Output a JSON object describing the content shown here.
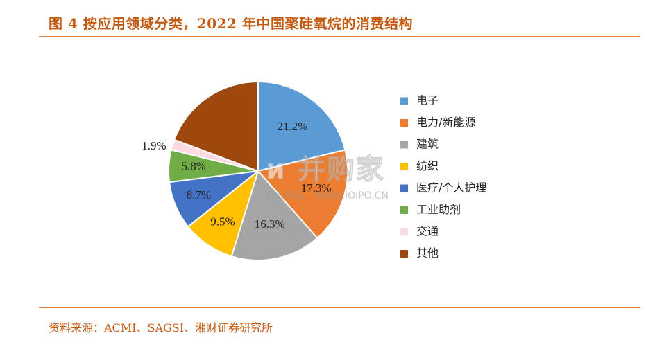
{
  "title": "图 4  按应用领域分类，2022 年中国聚硅氧烷的消费结构",
  "source": "资料来源：ACMI、SAGSI、湘财证券研究所",
  "watermark": {
    "main": "и 并购家",
    "sub": "行业报告 | WWW.IOIPO.CN"
  },
  "chart_data": {
    "type": "pie",
    "title": "",
    "legend_position": "right",
    "start": "12 o'clock, clockwise",
    "slices": [
      {
        "label": "电子",
        "value": 21.2,
        "display": "21.2%",
        "color": "#5b9bd5"
      },
      {
        "label": "电力/新能源",
        "value": 17.3,
        "display": "17.3%",
        "color": "#ed7d31"
      },
      {
        "label": "建筑",
        "value": 16.3,
        "display": "16.3%",
        "color": "#a5a5a5"
      },
      {
        "label": "纺织",
        "value": 9.5,
        "display": "9.5%",
        "color": "#ffc000"
      },
      {
        "label": "医疗/个人护理",
        "value": 8.7,
        "display": "8.7%",
        "color": "#4472c4"
      },
      {
        "label": "工业助剂",
        "value": 5.8,
        "display": "5.8%",
        "color": "#70ad47"
      },
      {
        "label": "交通",
        "value": 1.9,
        "display": "1.9%",
        "color": "#fadbe1"
      },
      {
        "label": "其他",
        "value": 19.3,
        "display": "",
        "color": "#9e480e"
      }
    ]
  }
}
